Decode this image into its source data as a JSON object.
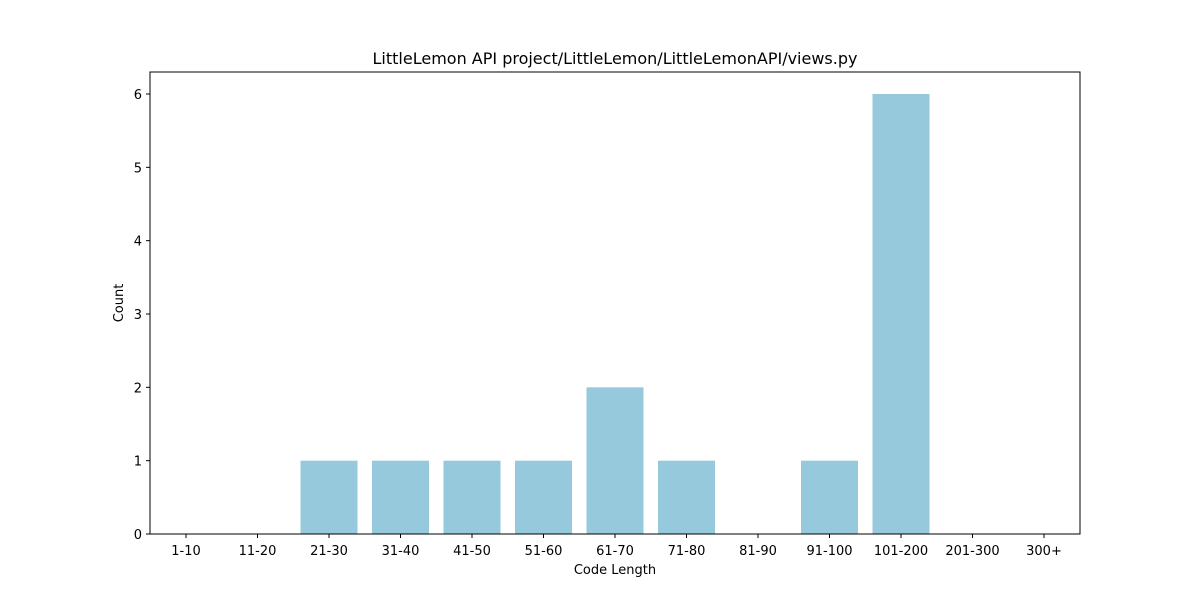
{
  "chart_data": {
    "type": "bar",
    "title": "LittleLemon API project/LittleLemon/LittleLemonAPI/views.py",
    "xlabel": "Code Length",
    "ylabel": "Count",
    "categories": [
      "1-10",
      "11-20",
      "21-30",
      "31-40",
      "41-50",
      "51-60",
      "61-70",
      "71-80",
      "81-90",
      "91-100",
      "101-200",
      "201-300",
      "300+"
    ],
    "values": [
      0,
      0,
      1,
      1,
      1,
      1,
      2,
      1,
      0,
      1,
      6,
      0,
      0
    ],
    "yticks": [
      0,
      1,
      2,
      3,
      4,
      5,
      6
    ],
    "ylim": [
      0,
      6.3
    ],
    "bar_color": "#96c9dc",
    "grid": false,
    "legend": false
  }
}
